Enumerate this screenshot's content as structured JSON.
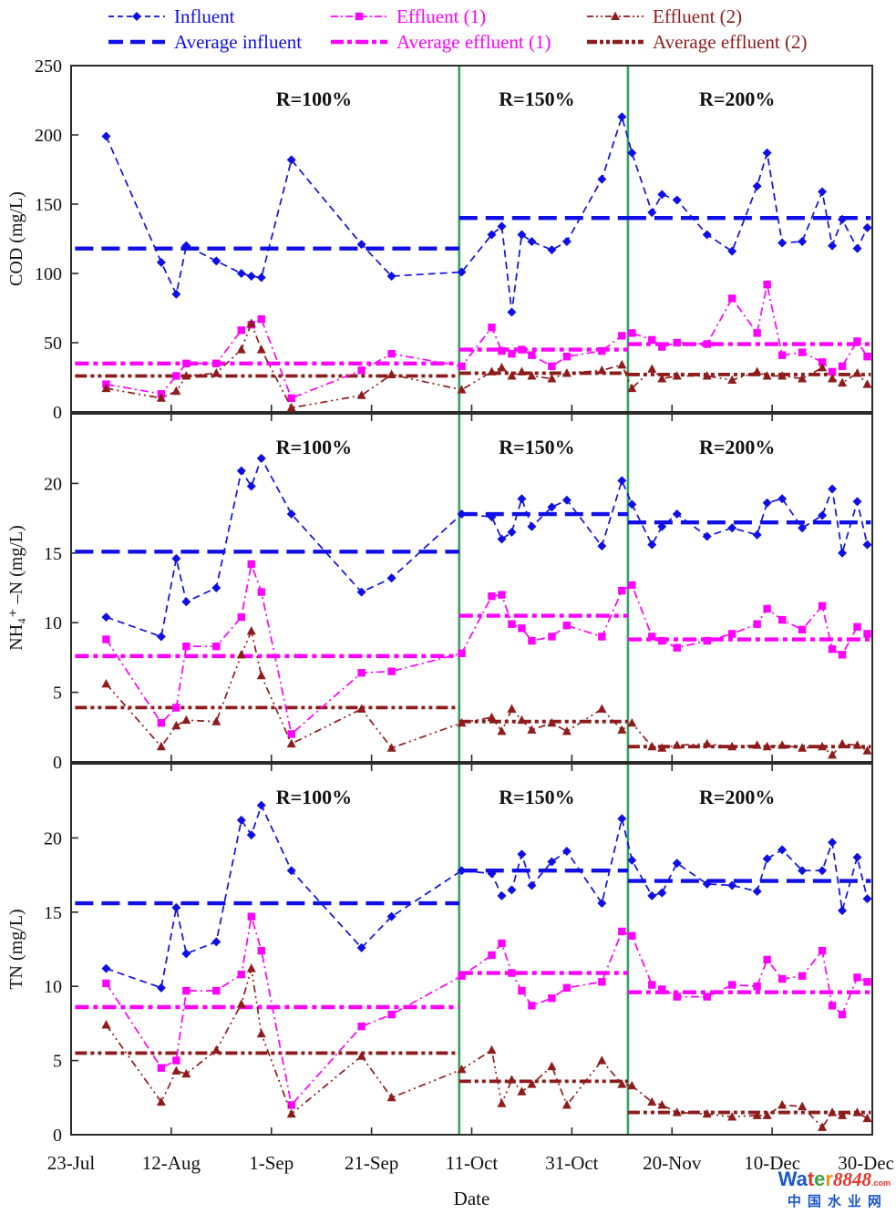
{
  "legend": {
    "items": [
      {
        "label": "Influent",
        "color": "#0f0fe6",
        "marker": "diamond",
        "style": "dash"
      },
      {
        "label": "Effluent (1)",
        "color": "#ff00ff",
        "marker": "square",
        "style": "dashdot"
      },
      {
        "label": "Effluent (2)",
        "color": "#8e1c1c",
        "marker": "triangle",
        "style": "dashdotdot"
      },
      {
        "label": "Average influent",
        "color": "#0f0fe6",
        "marker": "none",
        "style": "avg-dash"
      },
      {
        "label": "Average effluent (1)",
        "color": "#ff00ff",
        "marker": "none",
        "style": "avg-dashdot"
      },
      {
        "label": "Average effluent (2)",
        "color": "#8e1c1c",
        "marker": "none",
        "style": "avg-dashdotdot"
      }
    ]
  },
  "x_axis": {
    "label": "Date",
    "tick_labels": [
      "23-Jul",
      "12-Aug",
      "1-Sep",
      "21-Sep",
      "11-Oct",
      "31-Oct",
      "20-Nov",
      "10-Dec",
      "30-Dec"
    ],
    "tick_days": [
      0,
      20,
      40,
      60,
      80,
      100,
      120,
      140,
      160
    ],
    "range_days": [
      0,
      160
    ]
  },
  "regions": {
    "labels": [
      "R=100%",
      "R=150%",
      "R=200%"
    ],
    "label_days": [
      48.5,
      93,
      133
    ],
    "divider_days": [
      77.5,
      111.2
    ],
    "divider_color": "#33a45f"
  },
  "sample_days": [
    7,
    18,
    21,
    23,
    29,
    34,
    36,
    38,
    44,
    58,
    64,
    78,
    84,
    86,
    88,
    90,
    92,
    96,
    99,
    106,
    110,
    112,
    116,
    118,
    121,
    127,
    132,
    137,
    139,
    142,
    146,
    150,
    152,
    154,
    157,
    159
  ],
  "chart_data": [
    {
      "id": "cod",
      "type": "line",
      "ylabel": "COD (mg/L)",
      "ylim": [
        0,
        250
      ],
      "yticks": [
        0,
        50,
        100,
        150,
        200,
        250
      ],
      "grid": false,
      "series": [
        {
          "name": "Influent",
          "values": [
            199,
            108,
            85,
            120,
            109,
            100,
            98,
            97,
            182,
            121,
            98,
            101,
            128,
            134,
            72,
            128,
            123,
            117,
            123,
            168,
            213,
            187,
            144,
            157,
            153,
            128,
            116,
            163,
            187,
            122,
            123,
            159,
            120,
            139,
            118,
            133
          ],
          "average_by_region": [
            118,
            140,
            140
          ]
        },
        {
          "name": "Effluent (1)",
          "values": [
            20,
            13,
            26,
            35,
            35,
            59,
            63,
            67,
            10,
            30,
            42,
            33,
            61,
            44,
            42,
            45,
            41,
            33,
            40,
            44,
            55,
            57,
            52,
            47,
            50,
            49,
            82,
            57,
            92,
            41,
            43,
            36,
            29,
            33,
            51,
            40
          ],
          "average_by_region": [
            35,
            45,
            49
          ]
        },
        {
          "name": "Effluent (2)",
          "values": [
            17,
            10,
            15,
            26,
            28,
            45,
            64,
            45,
            3,
            12,
            27,
            16,
            29,
            32,
            26,
            29,
            26,
            24,
            28,
            30,
            34,
            17,
            31,
            24,
            26,
            26,
            23,
            29,
            26,
            26,
            24,
            32,
            24,
            21,
            28,
            20
          ],
          "average_by_region": [
            26,
            28,
            27
          ]
        }
      ]
    },
    {
      "id": "nh4n",
      "type": "line",
      "ylabel": "NH₄⁺ –N (mg/L)",
      "ylim": [
        0,
        25
      ],
      "yticks": [
        0,
        5,
        10,
        15,
        20
      ],
      "grid": false,
      "series": [
        {
          "name": "Influent",
          "values": [
            10.4,
            9.0,
            14.6,
            11.5,
            12.5,
            20.9,
            19.8,
            21.8,
            17.8,
            12.2,
            13.2,
            17.8,
            17.6,
            16.0,
            16.5,
            18.9,
            16.9,
            18.3,
            18.8,
            15.5,
            20.2,
            18.5,
            15.6,
            16.9,
            17.8,
            16.2,
            16.8,
            16.3,
            18.6,
            18.9,
            16.8,
            17.7,
            19.6,
            15.0,
            18.7,
            15.6
          ],
          "average_by_region": [
            15.1,
            17.8,
            17.2
          ]
        },
        {
          "name": "Effluent (1)",
          "values": [
            8.8,
            2.8,
            3.9,
            8.3,
            8.3,
            10.4,
            14.2,
            12.2,
            2.0,
            6.4,
            6.5,
            7.8,
            11.9,
            12.0,
            9.9,
            9.6,
            8.7,
            9.0,
            9.8,
            9.0,
            12.3,
            12.7,
            9.0,
            8.7,
            8.2,
            8.7,
            9.2,
            9.9,
            11.0,
            10.2,
            9.5,
            11.2,
            8.1,
            7.7,
            9.7,
            9.2
          ],
          "average_by_region": [
            7.6,
            10.5,
            8.8
          ]
        },
        {
          "name": "Effluent (2)",
          "values": [
            5.6,
            1.1,
            2.6,
            3.0,
            2.9,
            7.7,
            9.4,
            6.2,
            1.3,
            3.8,
            1.0,
            2.8,
            3.2,
            2.2,
            3.8,
            3.0,
            2.3,
            2.8,
            2.2,
            3.8,
            2.3,
            2.8,
            1.1,
            1.0,
            1.2,
            1.3,
            1.1,
            1.2,
            1.1,
            1.2,
            1.0,
            1.1,
            0.5,
            1.3,
            1.2,
            0.8
          ],
          "average_by_region": [
            3.9,
            2.9,
            1.1
          ]
        }
      ]
    },
    {
      "id": "tn",
      "type": "line",
      "ylabel": "TN (mg/L)",
      "ylim": [
        0,
        25
      ],
      "yticks": [
        0,
        5,
        10,
        15,
        20
      ],
      "grid": false,
      "series": [
        {
          "name": "Influent",
          "values": [
            11.2,
            9.9,
            15.3,
            12.2,
            13.0,
            21.2,
            20.2,
            22.2,
            17.8,
            12.6,
            14.7,
            17.8,
            17.6,
            16.1,
            16.5,
            18.9,
            16.8,
            18.4,
            19.1,
            15.6,
            21.3,
            18.5,
            16.1,
            16.3,
            18.3,
            16.9,
            16.8,
            16.4,
            18.6,
            19.2,
            17.8,
            17.8,
            19.7,
            15.1,
            18.7,
            15.9
          ],
          "average_by_region": [
            15.6,
            17.8,
            17.1
          ]
        },
        {
          "name": "Effluent (1)",
          "values": [
            10.2,
            4.5,
            5.0,
            9.7,
            9.7,
            10.8,
            14.7,
            12.4,
            2.0,
            7.3,
            8.1,
            10.7,
            12.1,
            12.9,
            10.9,
            9.7,
            8.7,
            9.2,
            9.9,
            10.3,
            13.7,
            13.4,
            10.1,
            9.8,
            9.3,
            9.3,
            10.1,
            10.0,
            11.8,
            10.5,
            10.7,
            12.4,
            8.7,
            8.1,
            10.6,
            10.3
          ],
          "average_by_region": [
            8.6,
            10.9,
            9.6
          ]
        },
        {
          "name": "Effluent (2)",
          "values": [
            7.4,
            2.2,
            4.3,
            4.1,
            5.7,
            8.8,
            11.2,
            6.8,
            1.4,
            5.3,
            2.5,
            4.4,
            5.7,
            2.1,
            3.7,
            2.9,
            3.4,
            4.6,
            2.0,
            5.0,
            3.4,
            3.3,
            2.2,
            2.0,
            1.5,
            1.4,
            1.2,
            1.3,
            1.3,
            2.0,
            1.9,
            0.5,
            1.5,
            1.3,
            1.5,
            1.1
          ],
          "average_by_region": [
            5.5,
            3.6,
            1.5
          ]
        }
      ]
    }
  ],
  "watermark": {
    "brand_parts": [
      {
        "text": "Wa",
        "color": "#1a56c8",
        "style": "sans"
      },
      {
        "text": "t",
        "color": "#e53228",
        "style": "sans"
      },
      {
        "text": "e",
        "color": "#3da33b",
        "style": "sans"
      },
      {
        "text": "r",
        "color": "#f08c1e",
        "style": "sans"
      },
      {
        "text": "8848",
        "color": "#e53228",
        "style": "serif-italic"
      },
      {
        "text": ".com",
        "color": "#e53228",
        "style": "small"
      }
    ],
    "line2": "中国水业网",
    "line2_color": "#1a56c8"
  }
}
